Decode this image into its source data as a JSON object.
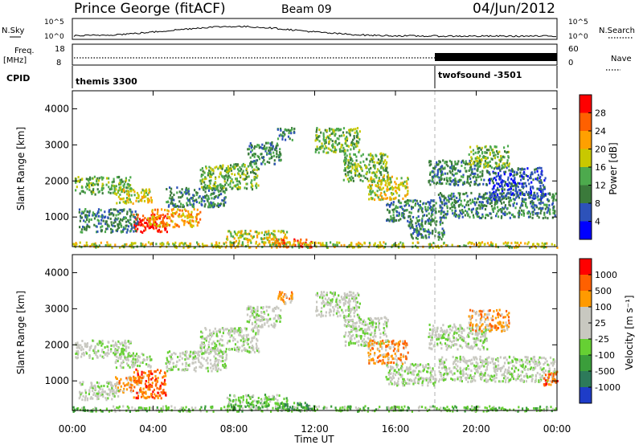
{
  "header": {
    "station": "Prince George (fitACF)",
    "beam": "Beam 09",
    "date": "04/Jun/2012"
  },
  "strip": {
    "nsky_label": "N.Sky",
    "nsearch_label": "N.Search",
    "freq_label_1": "Freq.",
    "freq_label_2": "[MHz]",
    "nave_label": "Nave",
    "cpid_label": "CPID",
    "nsky_ticks": [
      "10^5",
      "10^0"
    ],
    "nsearch_ticks": [
      "10^5",
      "10^0"
    ],
    "freq_ticks": [
      "18",
      "8"
    ],
    "nave_ticks": [
      "60",
      "0"
    ],
    "cpid_segments": [
      {
        "name": "themis 3300",
        "start_hour": 0,
        "end_hour": 18
      },
      {
        "name": "twofsound -3501",
        "start_hour": 18,
        "end_hour": 24
      }
    ]
  },
  "chart_data": [
    {
      "type": "heatmap",
      "name": "power",
      "ylabel": "Slant Range [km]",
      "xlabel": "",
      "ylim": [
        180,
        4500
      ],
      "xlim": [
        0,
        24
      ],
      "y_ticks": [
        "1000",
        "2000",
        "3000",
        "4000"
      ],
      "colorbar_label": "Power [dB]",
      "colorbar_ticks": [
        "28",
        "24",
        "20",
        "16",
        "12",
        "8",
        "4"
      ],
      "colorbar_colors": [
        "#0000ff",
        "#2d52b9",
        "#3b7a3b",
        "#4daa4d",
        "#c8c800",
        "#ffa000",
        "#ff6000",
        "#ff0000"
      ],
      "regions": [
        {
          "t": [
            0.1,
            2.9
          ],
          "r": [
            1650,
            2150
          ],
          "level": 3
        },
        {
          "t": [
            2.1,
            3.9
          ],
          "r": [
            1400,
            1800
          ],
          "level": 4
        },
        {
          "t": [
            3.0,
            4.7
          ],
          "r": [
            600,
            1100
          ],
          "level": 7
        },
        {
          "t": [
            3.7,
            6.3
          ],
          "r": [
            750,
            1250
          ],
          "level": 5
        },
        {
          "t": [
            0.3,
            3.2
          ],
          "r": [
            600,
            1250
          ],
          "level": 2
        },
        {
          "t": [
            4.6,
            7.6
          ],
          "r": [
            1300,
            1850
          ],
          "level": 2
        },
        {
          "t": [
            6.3,
            9.2
          ],
          "r": [
            1800,
            2500
          ],
          "level": 3
        },
        {
          "t": [
            8.6,
            10.3
          ],
          "r": [
            2500,
            3100
          ],
          "level": 2
        },
        {
          "t": [
            10.1,
            11.0
          ],
          "r": [
            3150,
            3500
          ],
          "level": 2
        },
        {
          "t": [
            7.6,
            10.6
          ],
          "r": [
            300,
            650
          ],
          "level": 4
        },
        {
          "t": [
            10.0,
            11.8
          ],
          "r": [
            180,
            420
          ],
          "level": 6
        },
        {
          "t": [
            12.0,
            14.2
          ],
          "r": [
            2800,
            3500
          ],
          "level": 3
        },
        {
          "t": [
            13.4,
            15.6
          ],
          "r": [
            2000,
            2800
          ],
          "level": 3
        },
        {
          "t": [
            14.6,
            16.6
          ],
          "r": [
            1500,
            2150
          ],
          "level": 4
        },
        {
          "t": [
            15.5,
            18.0
          ],
          "r": [
            900,
            1500
          ],
          "level": 2
        },
        {
          "t": [
            16.6,
            18.4
          ],
          "r": [
            400,
            950
          ],
          "level": 2
        },
        {
          "t": [
            17.6,
            20.6
          ],
          "r": [
            1900,
            2600
          ],
          "level": 2
        },
        {
          "t": [
            19.6,
            21.6
          ],
          "r": [
            2400,
            3000
          ],
          "level": 3
        },
        {
          "t": [
            18.1,
            23.9
          ],
          "r": [
            1000,
            1700
          ],
          "level": 2
        },
        {
          "t": [
            20.6,
            23.4
          ],
          "r": [
            1500,
            2400
          ],
          "level": 1
        },
        {
          "t": [
            0.0,
            24.0
          ],
          "r": [
            180,
            330
          ],
          "level": 4
        }
      ]
    },
    {
      "type": "heatmap",
      "name": "velocity",
      "ylabel": "Slant Range [km]",
      "xlabel": "Time UT",
      "ylim": [
        180,
        4500
      ],
      "xlim": [
        0,
        24
      ],
      "y_ticks": [
        "1000",
        "2000",
        "3000",
        "4000"
      ],
      "x_ticks": [
        "00:00",
        "04:00",
        "08:00",
        "12:00",
        "16:00",
        "20:00",
        "00:00"
      ],
      "colorbar_label": "Velocity [m s⁻¹]",
      "colorbar_ticks": [
        "1000",
        "500",
        "100",
        "25",
        "-25",
        "-100",
        "-500",
        "-1000"
      ],
      "colorbar_colors": [
        "#1e3cc8",
        "#2d7a5a",
        "#3b9e3b",
        "#66d033",
        "#c8c8c0",
        "#c8c8c0",
        "#ff9a00",
        "#ff6000",
        "#ff0000"
      ],
      "regions": [
        {
          "t": [
            0.1,
            2.9
          ],
          "r": [
            1650,
            2150
          ],
          "level": 4
        },
        {
          "t": [
            2.1,
            3.9
          ],
          "r": [
            1400,
            1800
          ],
          "level": 4
        },
        {
          "t": [
            2.1,
            3.5
          ],
          "r": [
            700,
            1150
          ],
          "level": 6
        },
        {
          "t": [
            3.0,
            4.6
          ],
          "r": [
            550,
            1350
          ],
          "level": 7
        },
        {
          "t": [
            0.3,
            2.3
          ],
          "r": [
            500,
            1000
          ],
          "level": 4
        },
        {
          "t": [
            4.6,
            7.6
          ],
          "r": [
            1300,
            1850
          ],
          "level": 4
        },
        {
          "t": [
            6.3,
            9.2
          ],
          "r": [
            1800,
            2500
          ],
          "level": 4
        },
        {
          "t": [
            8.6,
            10.3
          ],
          "r": [
            2500,
            3100
          ],
          "level": 4
        },
        {
          "t": [
            10.1,
            11.0
          ],
          "r": [
            3150,
            3500
          ],
          "level": 6
        },
        {
          "t": [
            7.6,
            10.6
          ],
          "r": [
            300,
            650
          ],
          "level": 3
        },
        {
          "t": [
            10.0,
            11.8
          ],
          "r": [
            180,
            420
          ],
          "level": 2
        },
        {
          "t": [
            12.0,
            14.2
          ],
          "r": [
            2800,
            3500
          ],
          "level": 4
        },
        {
          "t": [
            13.4,
            15.6
          ],
          "r": [
            2000,
            2800
          ],
          "level": 4
        },
        {
          "t": [
            14.6,
            16.6
          ],
          "r": [
            1500,
            2150
          ],
          "level": 6
        },
        {
          "t": [
            15.5,
            18.0
          ],
          "r": [
            900,
            1500
          ],
          "level": 4
        },
        {
          "t": [
            17.6,
            20.6
          ],
          "r": [
            1900,
            2600
          ],
          "level": 4
        },
        {
          "t": [
            19.6,
            21.6
          ],
          "r": [
            2400,
            3000
          ],
          "level": 6
        },
        {
          "t": [
            18.1,
            23.9
          ],
          "r": [
            1000,
            1700
          ],
          "level": 4
        },
        {
          "t": [
            23.3,
            24.0
          ],
          "r": [
            900,
            1300
          ],
          "level": 7
        },
        {
          "t": [
            0.0,
            24.0
          ],
          "r": [
            180,
            330
          ],
          "level": 3
        }
      ]
    }
  ]
}
